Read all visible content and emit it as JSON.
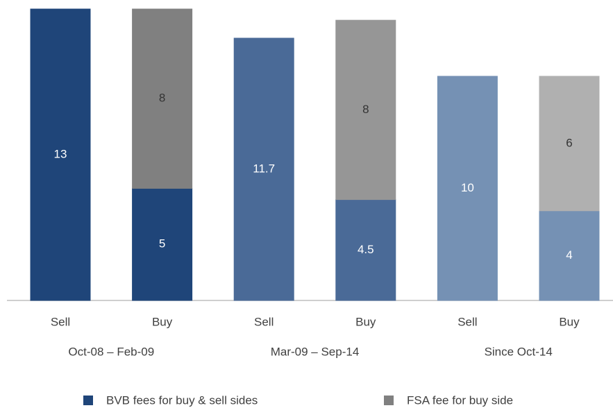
{
  "chart_data": {
    "type": "stacked_bar",
    "categories": [
      "Sell",
      "Buy",
      "Sell",
      "Buy",
      "Sell",
      "Buy"
    ],
    "groups": [
      "Oct-08 – Feb-09",
      "Mar-09 – Sep-14",
      "Since Oct-14"
    ],
    "series": [
      {
        "name": "BVB fees for buy & sell sides",
        "color": "#1f4579",
        "colors": [
          "#1f4579",
          "#1f4579",
          "#4a6a97",
          "#4a6a97",
          "#7591b4",
          "#7591b4"
        ],
        "values": [
          13,
          5,
          11.7,
          4.5,
          10,
          4
        ]
      },
      {
        "name": "FSA fee for buy side",
        "color": "#808080",
        "colors": [
          "#808080",
          "#808080",
          "#969696",
          "#969696",
          "#b0b0b0",
          "#b0b0b0"
        ],
        "values": [
          null,
          8,
          null,
          8,
          null,
          6
        ]
      }
    ]
  }
}
